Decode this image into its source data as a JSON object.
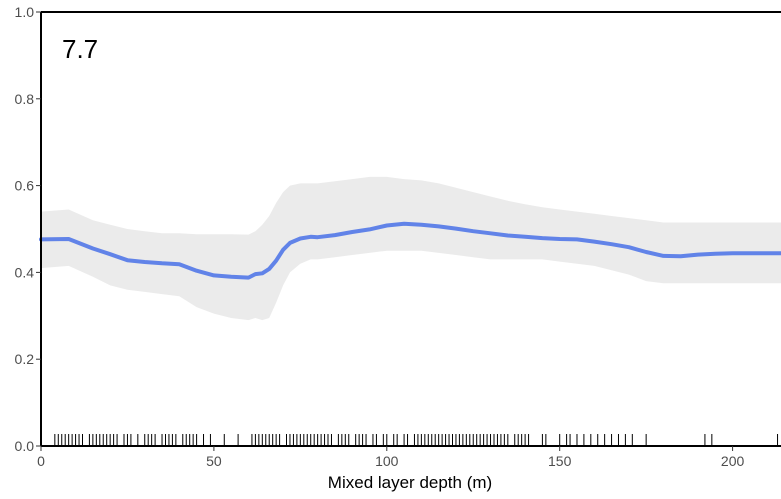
{
  "chart_data": {
    "type": "line",
    "panel_label": "7.7",
    "xlabel": "Mixed layer depth (m)",
    "ylabel": "",
    "xlim": [
      0,
      214
    ],
    "ylim": [
      0,
      1
    ],
    "x_ticks": [
      0,
      50,
      100,
      150,
      200
    ],
    "x_tick_labels": [
      "0",
      "50",
      "100",
      "150",
      "200"
    ],
    "y_ticks": [
      0,
      0.2,
      0.4,
      0.6,
      0.8,
      1.0
    ],
    "y_tick_labels": [
      "0.0",
      "0.2",
      "0.4",
      "0.6",
      "0.8",
      "1.0"
    ],
    "grid": false,
    "colors": {
      "line": "#6183e8",
      "band": "#ebebeb",
      "rug": "#000000",
      "axis": "#000000"
    },
    "series": [
      {
        "x": [
          0,
          8,
          15,
          20,
          25,
          30,
          35,
          40,
          45,
          50,
          55,
          60,
          62,
          64,
          66,
          68,
          70,
          72,
          75,
          78,
          80,
          85,
          90,
          95,
          100,
          105,
          110,
          115,
          120,
          125,
          130,
          135,
          140,
          145,
          150,
          155,
          160,
          165,
          170,
          175,
          180,
          185,
          190,
          195,
          200,
          205,
          214
        ],
        "y": [
          0.476,
          0.477,
          0.455,
          0.442,
          0.428,
          0.424,
          0.421,
          0.419,
          0.404,
          0.393,
          0.39,
          0.388,
          0.396,
          0.398,
          0.408,
          0.427,
          0.452,
          0.468,
          0.478,
          0.482,
          0.481,
          0.486,
          0.493,
          0.499,
          0.508,
          0.512,
          0.51,
          0.506,
          0.501,
          0.495,
          0.49,
          0.485,
          0.482,
          0.479,
          0.477,
          0.476,
          0.471,
          0.465,
          0.458,
          0.447,
          0.438,
          0.437,
          0.441,
          0.443,
          0.444,
          0.444,
          0.444
        ],
        "lower": [
          0.41,
          0.415,
          0.39,
          0.37,
          0.36,
          0.355,
          0.35,
          0.345,
          0.32,
          0.305,
          0.295,
          0.29,
          0.295,
          0.29,
          0.295,
          0.33,
          0.37,
          0.4,
          0.42,
          0.43,
          0.43,
          0.435,
          0.44,
          0.445,
          0.45,
          0.45,
          0.45,
          0.445,
          0.44,
          0.435,
          0.43,
          0.43,
          0.43,
          0.43,
          0.425,
          0.42,
          0.415,
          0.405,
          0.395,
          0.38,
          0.375,
          0.375,
          0.375,
          0.375,
          0.375,
          0.375,
          0.375
        ],
        "upper": [
          0.54,
          0.545,
          0.52,
          0.51,
          0.5,
          0.495,
          0.49,
          0.49,
          0.488,
          0.488,
          0.488,
          0.487,
          0.495,
          0.51,
          0.53,
          0.56,
          0.585,
          0.6,
          0.605,
          0.605,
          0.605,
          0.61,
          0.615,
          0.62,
          0.62,
          0.615,
          0.612,
          0.605,
          0.595,
          0.585,
          0.575,
          0.565,
          0.557,
          0.55,
          0.545,
          0.54,
          0.535,
          0.53,
          0.525,
          0.52,
          0.515,
          0.515,
          0.515,
          0.515,
          0.515,
          0.515,
          0.515
        ]
      }
    ],
    "rug": [
      4,
      5,
      6,
      7,
      8,
      9,
      10,
      11,
      12,
      14,
      15,
      16,
      17,
      18,
      19,
      20,
      21,
      22,
      24,
      25,
      26,
      28,
      30,
      31,
      32,
      33,
      35,
      36,
      37,
      38,
      39,
      41,
      42,
      43,
      44,
      45,
      47,
      49,
      53,
      57,
      61,
      62,
      63,
      64,
      65,
      66,
      67,
      68,
      69,
      71,
      72,
      73,
      74,
      75,
      76,
      77,
      78,
      79,
      80,
      81,
      82,
      83,
      84,
      86,
      87,
      88,
      89,
      91,
      92,
      93,
      94,
      96,
      97,
      99,
      100,
      102,
      103,
      105,
      106,
      108,
      109,
      110,
      111,
      112,
      113,
      114,
      115,
      116,
      117,
      118,
      119,
      120,
      121,
      122,
      123,
      124,
      125,
      126,
      127,
      128,
      129,
      130,
      131,
      132,
      133,
      134,
      135,
      137,
      138,
      139,
      140,
      141,
      145,
      146,
      150,
      152,
      153,
      155,
      157,
      159,
      161,
      163,
      165,
      167,
      169,
      171,
      175,
      192,
      194,
      213
    ]
  }
}
